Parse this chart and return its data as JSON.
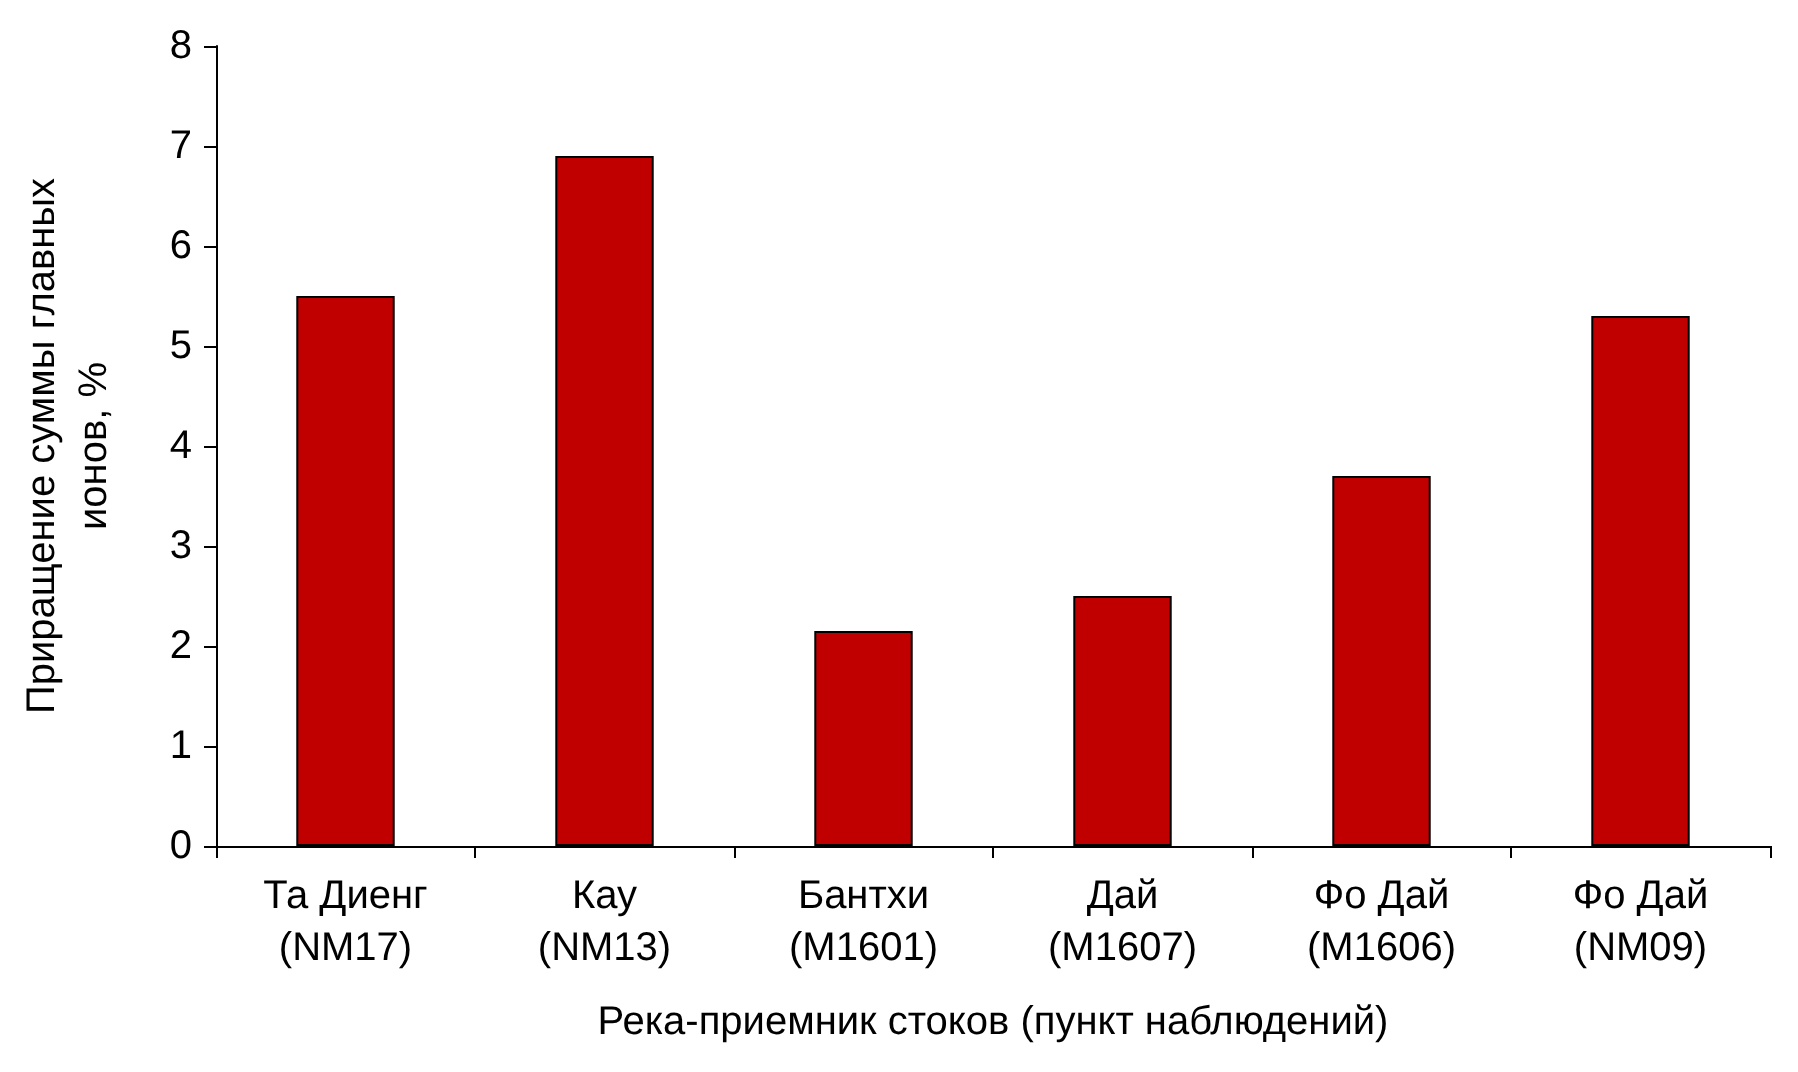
{
  "chart_data": {
    "type": "bar",
    "xlabel": "Река-приемник стоков (пункт наблюдений)",
    "ylabel": "Приращение суммы главных\nионов, %",
    "categories": [
      "Та Диенг\n(NM17)",
      "Кау\n(NM13)",
      "Бантхи\n(M1601)",
      "Дай\n(M1607)",
      "Фо Дай\n(M1606)",
      "Фо Дай\n(NM09)"
    ],
    "values": [
      5.5,
      6.9,
      2.15,
      2.5,
      3.7,
      5.3
    ],
    "color": "#c00000",
    "ylim": [
      0,
      8
    ],
    "yticks": [
      0,
      1,
      2,
      3,
      4,
      5,
      6,
      7,
      8
    ],
    "grid": false
  }
}
